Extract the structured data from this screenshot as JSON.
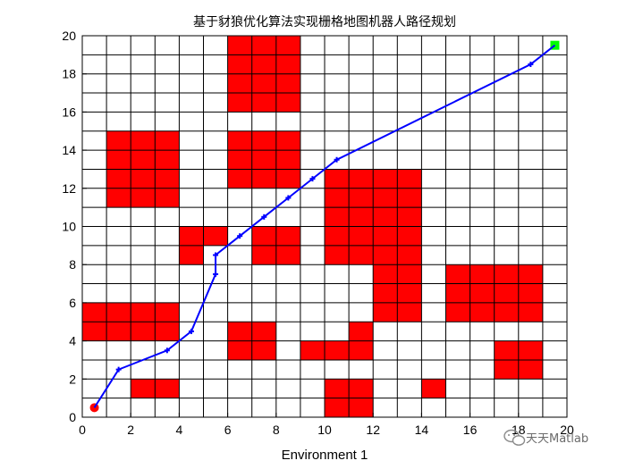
{
  "chart_data": {
    "type": "grid-path",
    "title": "基于豺狼优化算法实现栅格地图机器人路径规划",
    "xlabel": "Environment 1",
    "ylabel": "",
    "xlim": [
      0,
      20
    ],
    "ylim": [
      0,
      20
    ],
    "xticks": [
      "0",
      "2",
      "4",
      "6",
      "8",
      "10",
      "12",
      "14",
      "16",
      "18",
      "20"
    ],
    "yticks": [
      "0",
      "2",
      "4",
      "6",
      "8",
      "10",
      "12",
      "14",
      "16",
      "18",
      "20"
    ],
    "grid": true,
    "obstacles": [
      [
        6,
        16
      ],
      [
        7,
        16
      ],
      [
        8,
        16
      ],
      [
        6,
        17
      ],
      [
        7,
        17
      ],
      [
        8,
        17
      ],
      [
        6,
        18
      ],
      [
        7,
        18
      ],
      [
        8,
        18
      ],
      [
        6,
        19
      ],
      [
        7,
        19
      ],
      [
        8,
        19
      ],
      [
        1,
        11
      ],
      [
        2,
        11
      ],
      [
        3,
        11
      ],
      [
        1,
        12
      ],
      [
        2,
        12
      ],
      [
        3,
        12
      ],
      [
        1,
        13
      ],
      [
        2,
        13
      ],
      [
        3,
        13
      ],
      [
        1,
        14
      ],
      [
        2,
        14
      ],
      [
        3,
        14
      ],
      [
        6,
        12
      ],
      [
        7,
        12
      ],
      [
        8,
        12
      ],
      [
        6,
        13
      ],
      [
        7,
        13
      ],
      [
        8,
        13
      ],
      [
        6,
        14
      ],
      [
        7,
        14
      ],
      [
        8,
        14
      ],
      [
        10,
        8
      ],
      [
        11,
        8
      ],
      [
        12,
        8
      ],
      [
        13,
        8
      ],
      [
        10,
        9
      ],
      [
        11,
        9
      ],
      [
        12,
        9
      ],
      [
        13,
        9
      ],
      [
        10,
        10
      ],
      [
        11,
        10
      ],
      [
        12,
        10
      ],
      [
        13,
        10
      ],
      [
        10,
        11
      ],
      [
        11,
        11
      ],
      [
        12,
        11
      ],
      [
        13,
        11
      ],
      [
        10,
        12
      ],
      [
        11,
        12
      ],
      [
        12,
        12
      ],
      [
        13,
        12
      ],
      [
        12,
        5
      ],
      [
        13,
        5
      ],
      [
        12,
        6
      ],
      [
        13,
        6
      ],
      [
        12,
        7
      ],
      [
        13,
        7
      ],
      [
        4,
        8
      ],
      [
        4,
        9
      ],
      [
        5,
        9
      ],
      [
        7,
        8
      ],
      [
        8,
        8
      ],
      [
        7,
        9
      ],
      [
        8,
        9
      ],
      [
        15,
        5
      ],
      [
        16,
        5
      ],
      [
        17,
        5
      ],
      [
        18,
        5
      ],
      [
        15,
        6
      ],
      [
        16,
        6
      ],
      [
        17,
        6
      ],
      [
        18,
        6
      ],
      [
        15,
        7
      ],
      [
        16,
        7
      ],
      [
        17,
        7
      ],
      [
        18,
        7
      ],
      [
        0,
        4
      ],
      [
        1,
        4
      ],
      [
        2,
        4
      ],
      [
        3,
        4
      ],
      [
        0,
        5
      ],
      [
        1,
        5
      ],
      [
        2,
        5
      ],
      [
        3,
        5
      ],
      [
        6,
        3
      ],
      [
        7,
        3
      ],
      [
        6,
        4
      ],
      [
        7,
        4
      ],
      [
        9,
        3
      ],
      [
        10,
        3
      ],
      [
        11,
        3
      ],
      [
        11,
        4
      ],
      [
        17,
        2
      ],
      [
        18,
        2
      ],
      [
        17,
        3
      ],
      [
        18,
        3
      ],
      [
        2,
        1
      ],
      [
        3,
        1
      ],
      [
        10,
        0
      ],
      [
        11,
        0
      ],
      [
        10,
        1
      ],
      [
        11,
        1
      ],
      [
        14,
        1
      ]
    ],
    "path": {
      "x": [
        0.5,
        1.5,
        3.5,
        4.5,
        5.5,
        5.5,
        6.5,
        7.5,
        8.5,
        9.5,
        10.5,
        18.5,
        19.5
      ],
      "y": [
        0.5,
        2.5,
        3.5,
        4.5,
        7.5,
        8.5,
        9.5,
        10.5,
        11.5,
        12.5,
        13.5,
        18.5,
        19.5
      ]
    },
    "start": [
      0.5,
      0.5
    ],
    "goal": [
      19.5,
      19.5
    ],
    "colors": {
      "obstacle": "#ff0000",
      "free": "#ffffff",
      "path": "#0000ff",
      "start": "#ff0000",
      "goal": "#00ff00",
      "grid": "#000000"
    }
  },
  "watermark": {
    "text": "天天Matlab",
    "icon": "wechat-icon"
  }
}
